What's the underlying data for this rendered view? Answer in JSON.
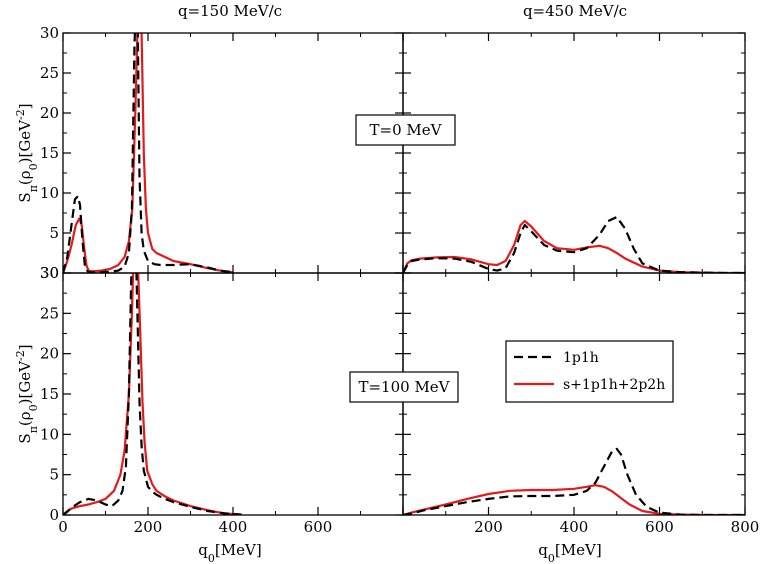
{
  "chart_data": {
    "type": "line",
    "grid": false,
    "column_titles": [
      "q=150 MeV/c",
      "q=450 MeV/c"
    ],
    "xlabel": "q0[MeV]",
    "ylabel": "Sπ(ρ0)[GeV⁻²]",
    "xlim": [
      0,
      800
    ],
    "ylim": [
      0,
      30
    ],
    "xticks": [
      "0",
      "200",
      "400",
      "600",
      "800"
    ],
    "yticks": [
      "0",
      "5",
      "10",
      "15",
      "20",
      "25",
      "30"
    ],
    "legend": {
      "placement": "right, bottom row",
      "entries": [
        {
          "name": "1p1h",
          "color": "#000000",
          "dash": "dashed"
        },
        {
          "name": "s+1p1h+2p2h",
          "color": "#e31a1c",
          "dash": "solid"
        }
      ]
    },
    "panels": [
      {
        "id": "T0_q150",
        "label": "T=0 MeV",
        "series": [
          {
            "name": "1p1h",
            "x": [
              0,
              10,
              20,
              28,
              35,
              40,
              46,
              52,
              60,
              70,
              90,
              110,
              130,
              145,
              155,
              162,
              168,
              172,
              176,
              180,
              185,
              190,
              200,
              215,
              230,
              260,
              300,
              340,
              370,
              400
            ],
            "y": [
              0,
              2,
              6,
              9.2,
              9.6,
              8.5,
              4,
              0.6,
              0.1,
              0.1,
              0.1,
              0.15,
              0.3,
              0.8,
              2.5,
              8,
              28,
              35,
              30,
              12,
              5,
              2.8,
              1.5,
              1.1,
              1,
              1,
              1.1,
              0.7,
              0.3,
              0.1
            ]
          },
          {
            "name": "s+1p1h+2p2h",
            "x": [
              0,
              10,
              20,
              30,
              38,
              44,
              50,
              55,
              60,
              70,
              90,
              110,
              130,
              145,
              155,
              163,
              170,
              175,
              178,
              185,
              190,
              195,
              200,
              210,
              220,
              240,
              260,
              300,
              340,
              380,
              400
            ],
            "y": [
              0,
              1.5,
              3.5,
              6,
              6.8,
              6,
              3,
              1,
              0.3,
              0.2,
              0.3,
              0.5,
              1,
              2,
              4,
              8,
              20,
              30,
              35,
              30,
              15,
              8,
              5,
              3,
              2.5,
              2,
              1.5,
              1.1,
              0.6,
              0.2,
              0.1
            ]
          }
        ]
      },
      {
        "id": "T0_q450",
        "label": "",
        "series": [
          {
            "name": "1p1h",
            "x": [
              0,
              10,
              20,
              40,
              80,
              120,
              160,
              200,
              220,
              240,
              260,
              275,
              285,
              300,
              330,
              360,
              400,
              430,
              460,
              480,
              500,
              520,
              540,
              560,
              600,
              650,
              700,
              750,
              800
            ],
            "y": [
              0,
              1,
              1.5,
              1.7,
              1.85,
              1.8,
              1.4,
              0.5,
              0.3,
              0.6,
              2.5,
              5,
              6,
              5.2,
              3.5,
              2.8,
              2.6,
              3.1,
              4.8,
              6.5,
              7,
              5.5,
              3,
              1.2,
              0.3,
              0.1,
              0.05,
              0,
              0
            ]
          },
          {
            "name": "s+1p1h+2p2h",
            "x": [
              0,
              10,
              20,
              40,
              80,
              120,
              160,
              200,
              220,
              240,
              260,
              275,
              285,
              300,
              330,
              360,
              400,
              430,
              460,
              480,
              500,
              520,
              560,
              600,
              650,
              700,
              750,
              800
            ],
            "y": [
              0,
              1.2,
              1.6,
              1.8,
              1.95,
              2,
              1.7,
              1.1,
              1,
              1.5,
              3.5,
              6,
              6.5,
              5.8,
              4,
              3.1,
              2.9,
              3.2,
              3.4,
              3.1,
              2.5,
              1.8,
              0.8,
              0.3,
              0.1,
              0.05,
              0,
              0
            ]
          }
        ]
      },
      {
        "id": "T100_q150",
        "label": "T=100 MeV",
        "series": [
          {
            "name": "1p1h",
            "x": [
              0,
              10,
              20,
              40,
              60,
              80,
              100,
              115,
              130,
              140,
              148,
              155,
              160,
              165,
              170,
              175,
              180,
              185,
              190,
              200,
              210,
              220,
              240,
              260,
              300,
              340,
              380,
              420
            ],
            "y": [
              0,
              0.4,
              0.9,
              1.6,
              2,
              1.8,
              1.3,
              1.1,
              1.8,
              3,
              6,
              15,
              28,
              38,
              36,
              25,
              14,
              8.5,
              5.5,
              3.5,
              2.9,
              2.5,
              2,
              1.6,
              1,
              0.5,
              0.2,
              0.05
            ]
          },
          {
            "name": "s+1p1h+2p2h",
            "x": [
              0,
              10,
              20,
              40,
              60,
              80,
              100,
              120,
              135,
              145,
              155,
              162,
              167,
              172,
              177,
              182,
              187,
              192,
              198,
              210,
              220,
              240,
              260,
              300,
              340,
              380,
              420
            ],
            "y": [
              0,
              0.5,
              0.8,
              1.1,
              1.3,
              1.6,
              2,
              3,
              5,
              8,
              15,
              25,
              34,
              36,
              30,
              22,
              14,
              9,
              5.5,
              3.8,
              3,
              2.3,
              1.8,
              1.1,
              0.6,
              0.2,
              0.05
            ]
          }
        ]
      },
      {
        "id": "T100_q450",
        "label": "",
        "series": [
          {
            "name": "1p1h",
            "x": [
              0,
              20,
              50,
              100,
              150,
              200,
              250,
              300,
              350,
              400,
              430,
              450,
              470,
              490,
              500,
              510,
              525,
              545,
              570,
              600,
              650,
              700,
              750,
              800
            ],
            "y": [
              0,
              0.2,
              0.6,
              1.1,
              1.6,
              2,
              2.3,
              2.35,
              2.35,
              2.5,
              3,
              4,
              6,
              8,
              8.2,
              7.5,
              5,
              2.5,
              1,
              0.3,
              0.05,
              0,
              0,
              0
            ]
          },
          {
            "name": "s+1p1h+2p2h",
            "x": [
              0,
              20,
              50,
              100,
              150,
              200,
              250,
              300,
              350,
              400,
              430,
              450,
              470,
              490,
              510,
              530,
              560,
              600,
              650,
              700,
              750,
              800
            ],
            "y": [
              0,
              0.3,
              0.7,
              1.3,
              2,
              2.6,
              3,
              3.1,
              3.1,
              3.25,
              3.5,
              3.7,
              3.5,
              2.9,
              2.1,
              1.3,
              0.5,
              0.15,
              0.05,
              0,
              0,
              0
            ]
          }
        ]
      }
    ]
  }
}
